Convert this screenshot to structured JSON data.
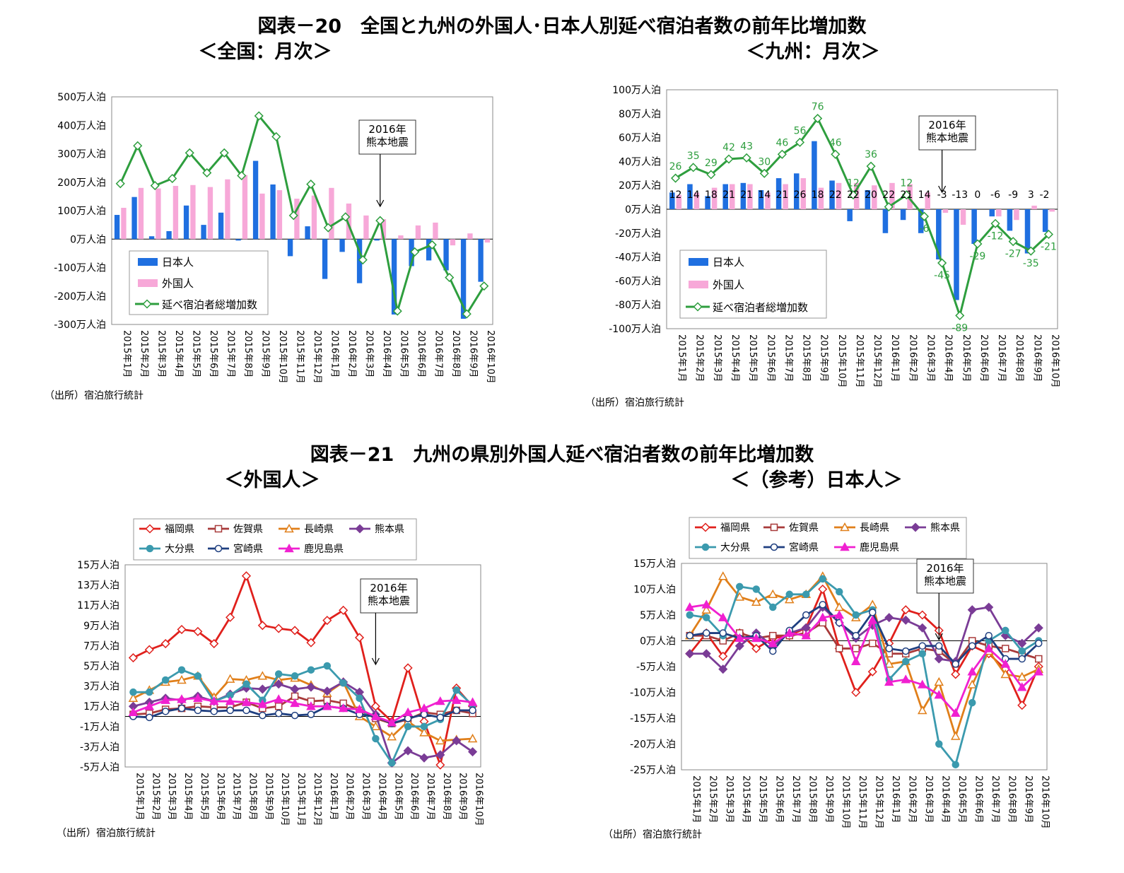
{
  "fig20": {
    "title": "図表－20　全国と九州の外国人･日本人別延べ宿泊者数の前年比増加数",
    "left_subtitle": "＜全国：月次＞",
    "right_subtitle": "＜九州：月次＞"
  },
  "fig21": {
    "title": "図表－21　九州の県別外国人延べ宿泊者数の前年比増加数",
    "left_subtitle": "＜外国人＞",
    "right_subtitle": "＜（参考）日本人＞"
  },
  "source_note": "（出所）宿泊旅行統計",
  "colors": {
    "japanese_bar": "#1f6fe0",
    "foreign_bar": "#f7a8d8",
    "total_line": "#2e9e3e",
    "fukuoka": "#e0201c",
    "saga": "#a83a3a",
    "nagasaki": "#e07f1a",
    "kumamoto": "#7a3c96",
    "oita": "#3b9aae",
    "miyazaki": "#1f3f80",
    "kagoshima": "#f020d0"
  },
  "chart_data": [
    {
      "id": "national",
      "type": "bar",
      "categories": [
        "2015年1月",
        "2015年2月",
        "2015年3月",
        "2015年4月",
        "2015年5月",
        "2015年6月",
        "2015年7月",
        "2015年8月",
        "2015年9月",
        "2015年10月",
        "2015年11月",
        "2015年12月",
        "2016年1月",
        "2016年2月",
        "2016年3月",
        "2016年4月",
        "2016年5月",
        "2016年6月",
        "2016年7月",
        "2016年8月",
        "2016年9月",
        "2016年10月"
      ],
      "yticks": [
        "500万人泊",
        "400万人泊",
        "300万人泊",
        "200万人泊",
        "100万人泊",
        "0万人泊",
        "-100万人泊",
        "-200万人泊",
        "-300万人泊"
      ],
      "ylim": [
        -300,
        500
      ],
      "annotation": [
        "2016年",
        "熊本地震"
      ],
      "legend_placement": "bottom-left",
      "series": [
        {
          "name": "日本人",
          "kind": "bar",
          "color": "#1f6fe0",
          "values": [
            85,
            148,
            10,
            28,
            118,
            50,
            93,
            -5,
            275,
            192,
            -60,
            45,
            -140,
            -45,
            -155,
            -5,
            -265,
            -95,
            -75,
            -110,
            -280,
            -150
          ]
        },
        {
          "name": "外国人",
          "kind": "bar",
          "color": "#f7a8d8",
          "values": [
            110,
            180,
            178,
            187,
            190,
            183,
            210,
            225,
            160,
            172,
            142,
            153,
            180,
            125,
            83,
            70,
            13,
            48,
            58,
            -22,
            20,
            -12
          ]
        },
        {
          "name": "延べ宿泊者総増加数",
          "kind": "line",
          "color": "#2e9e3e",
          "values": [
            195,
            328,
            188,
            213,
            303,
            233,
            303,
            223,
            433,
            360,
            83,
            193,
            40,
            78,
            -73,
            65,
            -253,
            -45,
            -20,
            -135,
            -263,
            -165
          ]
        }
      ]
    },
    {
      "id": "kyushu",
      "type": "bar",
      "categories": [
        "2015年1月",
        "2015年2月",
        "2015年3月",
        "2015年4月",
        "2015年5月",
        "2015年6月",
        "2015年7月",
        "2015年8月",
        "2015年9月",
        "2015年10月",
        "2015年11月",
        "2015年12月",
        "2016年1月",
        "2016年2月",
        "2016年3月",
        "2016年4月",
        "2016年5月",
        "2016年6月",
        "2016年7月",
        "2016年8月",
        "2016年9月",
        "2016年10月"
      ],
      "yticks": [
        "100万人泊",
        "80万人泊",
        "60万人泊",
        "40万人泊",
        "20万人泊",
        "0万人泊",
        "-20万人泊",
        "-40万人泊",
        "-60万人泊",
        "-80万人泊",
        "-100万人泊"
      ],
      "ylim": [
        -100,
        100
      ],
      "annotation": [
        "2016年",
        "熊本地震"
      ],
      "legend_placement": "bottom-left",
      "series": [
        {
          "name": "日本人",
          "kind": "bar",
          "color": "#1f6fe0",
          "values": [
            14,
            21,
            11,
            21,
            22,
            16,
            26,
            30,
            57,
            24,
            -10,
            16,
            -20,
            -9,
            -20,
            -42,
            -76,
            -29,
            -6,
            -18,
            -37,
            -19
          ]
        },
        {
          "name": "外国人",
          "kind": "bar",
          "color": "#f7a8d8",
          "values": [
            12,
            14,
            18,
            21,
            21,
            14,
            21,
            26,
            18,
            22,
            22,
            20,
            22,
            21,
            14,
            -3,
            -13,
            0,
            -6,
            -9,
            3,
            -2
          ]
        },
        {
          "name": "延べ宿泊者総増加数",
          "kind": "line",
          "color": "#2e9e3e",
          "values": [
            26,
            35,
            29,
            42,
            43,
            30,
            46,
            56,
            76,
            46,
            12,
            36,
            2,
            12,
            -6,
            -45,
            -89,
            -29,
            -12,
            -27,
            -35,
            -21
          ]
        }
      ],
      "foreign_labels": [
        "12",
        "14",
        "18",
        "21",
        "21",
        "14",
        "21",
        "26",
        "18",
        "22",
        "22",
        "20",
        "22",
        "21",
        "14",
        "-3",
        "-13",
        "0",
        "-6",
        "-9",
        "3",
        "-2"
      ],
      "total_labels": [
        "26",
        "35",
        "29",
        "42",
        "43",
        "30",
        "46",
        "56",
        "76",
        "46",
        "12",
        "36",
        "",
        "12",
        "-6",
        "-45",
        "-89",
        "-29",
        "-12",
        "-27",
        "-35",
        "-21"
      ]
    },
    {
      "id": "prefecture_foreign",
      "type": "line",
      "categories": [
        "2015年1月",
        "2015年2月",
        "2015年3月",
        "2015年4月",
        "2015年5月",
        "2015年6月",
        "2015年7月",
        "2015年8月",
        "2015年9月",
        "2015年10月",
        "2015年11月",
        "2015年12月",
        "2016年1月",
        "2016年2月",
        "2016年3月",
        "2016年4月",
        "2016年5月",
        "2016年6月",
        "2016年7月",
        "2016年8月",
        "2016年9月",
        "2016年10月"
      ],
      "yticks": [
        "15万人泊",
        "13万人泊",
        "11万人泊",
        "9万人泊",
        "7万人泊",
        "5万人泊",
        "3万人泊",
        "1万人泊",
        "-1万人泊",
        "-3万人泊",
        "-5万人泊"
      ],
      "ylim": [
        -5,
        15
      ],
      "annotation": [
        "2016年",
        "熊本地震"
      ],
      "legend_placement": "top-left",
      "series": [
        {
          "name": "福岡県",
          "color": "#e0201c",
          "marker": "diamond-open",
          "values": [
            5.8,
            6.6,
            7.2,
            8.6,
            8.4,
            7.2,
            9.8,
            13.9,
            9.0,
            8.7,
            8.5,
            7.3,
            9.5,
            10.5,
            7.8,
            1.0,
            -0.5,
            4.8,
            -0.5,
            -4.8,
            2.8,
            1.0
          ]
        },
        {
          "name": "佐賀県",
          "color": "#a83a3a",
          "marker": "square-open",
          "values": [
            0.2,
            0.3,
            0.7,
            0.8,
            1.0,
            0.9,
            0.9,
            1.4,
            0.8,
            1.0,
            2.0,
            1.5,
            1.6,
            1.3,
            0.6,
            -0.2,
            -0.7,
            -0.3,
            0.4,
            0.2,
            0.6,
            0.3
          ]
        },
        {
          "name": "長崎県",
          "color": "#e07f1a",
          "marker": "triangle-open",
          "values": [
            1.8,
            2.6,
            3.4,
            3.6,
            4.0,
            1.9,
            3.7,
            3.6,
            4.0,
            3.6,
            3.8,
            3.1,
            2.3,
            3.4,
            0.0,
            -1.0,
            -2.0,
            -0.5,
            -1.6,
            -2.4,
            -2.3,
            -2.2
          ]
        },
        {
          "name": "熊本県",
          "color": "#7a3c96",
          "marker": "diamond-filled",
          "values": [
            1.0,
            1.4,
            1.8,
            1.6,
            2.0,
            1.5,
            2.2,
            2.8,
            2.7,
            3.2,
            2.7,
            2.9,
            2.5,
            3.4,
            2.4,
            0.2,
            -4.6,
            -3.4,
            -4.1,
            -3.8,
            -2.4,
            -3.5
          ]
        },
        {
          "name": "大分県",
          "color": "#3b9aae",
          "marker": "circle-filled",
          "values": [
            2.4,
            2.4,
            3.6,
            4.6,
            4.0,
            1.5,
            2.1,
            3.2,
            1.6,
            4.2,
            4.0,
            4.6,
            5.0,
            3.3,
            1.8,
            -2.2,
            -4.6,
            -1.0,
            -1.0,
            -0.3,
            2.6,
            1.1
          ]
        },
        {
          "name": "宮崎県",
          "color": "#1f3f80",
          "marker": "circle-open",
          "values": [
            0.0,
            -0.1,
            0.5,
            0.8,
            0.6,
            0.5,
            0.6,
            0.6,
            0.1,
            0.3,
            0.1,
            0.2,
            1.0,
            0.8,
            0.2,
            0.0,
            -0.7,
            -0.2,
            0.2,
            -0.1,
            0.6,
            0.6
          ]
        },
        {
          "name": "鹿児島県",
          "color": "#f020d0",
          "marker": "triangle-filled",
          "values": [
            0.4,
            1.0,
            1.6,
            1.7,
            1.8,
            1.5,
            1.5,
            1.4,
            1.2,
            1.7,
            1.3,
            1.0,
            1.0,
            0.8,
            0.7,
            0.0,
            -0.6,
            0.4,
            0.8,
            1.5,
            1.6,
            1.4
          ]
        }
      ]
    },
    {
      "id": "prefecture_japanese",
      "type": "line",
      "categories": [
        "2015年1月",
        "2015年2月",
        "2015年3月",
        "2015年4月",
        "2015年5月",
        "2015年6月",
        "2015年7月",
        "2015年8月",
        "2015年9月",
        "2015年10月",
        "2015年11月",
        "2015年12月",
        "2016年1月",
        "2016年2月",
        "2016年3月",
        "2016年4月",
        "2016年5月",
        "2016年6月",
        "2016年7月",
        "2016年8月",
        "2016年9月",
        "2016年10月"
      ],
      "yticks": [
        "15万人泊",
        "10万人泊",
        "5万人泊",
        "0万人泊",
        "-5万人泊",
        "-10万人泊",
        "-15万人泊",
        "-20万人泊",
        "-25万人泊"
      ],
      "ylim": [
        -25,
        15
      ],
      "annotation": [
        "2016年",
        "熊本地震"
      ],
      "legend_placement": "top-left",
      "series": [
        {
          "name": "福岡県",
          "color": "#e0201c",
          "marker": "diamond-open",
          "values": [
            -2.5,
            1.5,
            -3.0,
            1.5,
            -1.5,
            0.5,
            1.0,
            2.5,
            10.0,
            -1.5,
            -10.0,
            -6.0,
            -0.5,
            6.0,
            5.0,
            2.0,
            -6.5,
            -1.0,
            -2.5,
            -5.5,
            -12.5,
            -5.0
          ]
        },
        {
          "name": "佐賀県",
          "color": "#a83a3a",
          "marker": "square-open",
          "values": [
            1.0,
            1.0,
            0.0,
            1.5,
            0.5,
            1.0,
            1.0,
            1.5,
            3.5,
            -1.5,
            -1.5,
            -0.5,
            -2.5,
            -2.5,
            -1.5,
            -2.0,
            -4.5,
            0.0,
            -1.0,
            -1.5,
            -2.5,
            -3.5
          ]
        },
        {
          "name": "長崎県",
          "color": "#e07f1a",
          "marker": "triangle-open",
          "values": [
            1.0,
            6.0,
            12.5,
            8.5,
            7.5,
            9.0,
            8.0,
            9.0,
            12.5,
            6.5,
            4.5,
            7.0,
            -4.5,
            -4.0,
            -13.5,
            -8.0,
            -18.5,
            -8.5,
            -2.0,
            -6.5,
            -7.0,
            -5.5
          ]
        },
        {
          "name": "熊本県",
          "color": "#7a3c96",
          "marker": "diamond-filled",
          "values": [
            -2.5,
            -2.5,
            -5.5,
            -1.0,
            1.5,
            -1.0,
            1.5,
            2.5,
            6.5,
            3.5,
            0.5,
            3.0,
            4.5,
            4.0,
            2.5,
            -3.5,
            -4.0,
            6.0,
            6.5,
            1.0,
            -0.5,
            2.5
          ]
        },
        {
          "name": "大分県",
          "color": "#3b9aae",
          "marker": "circle-filled",
          "values": [
            5.0,
            4.5,
            1.0,
            10.5,
            10.0,
            6.5,
            9.0,
            9.0,
            12.0,
            9.5,
            5.0,
            6.0,
            -7.5,
            -4.0,
            -2.5,
            -20.0,
            -24.0,
            -12.0,
            0.0,
            2.0,
            -2.0,
            0.0
          ]
        },
        {
          "name": "宮崎県",
          "color": "#1f3f80",
          "marker": "circle-open",
          "values": [
            1.0,
            1.5,
            1.5,
            0.5,
            1.0,
            -2.0,
            2.0,
            5.0,
            7.0,
            3.5,
            1.0,
            5.5,
            -1.5,
            -2.0,
            -1.0,
            -1.0,
            -4.5,
            -1.0,
            1.0,
            -3.5,
            -3.5,
            -0.5
          ]
        },
        {
          "name": "鹿児島県",
          "color": "#f020d0",
          "marker": "triangle-filled",
          "values": [
            6.5,
            7.0,
            4.5,
            0.5,
            0.5,
            -0.5,
            1.5,
            1.0,
            4.5,
            5.0,
            -4.0,
            4.0,
            -8.0,
            -7.5,
            -8.5,
            -10.5,
            -14.0,
            -6.0,
            -1.5,
            -4.5,
            -9.0,
            -6.0
          ]
        }
      ]
    }
  ]
}
